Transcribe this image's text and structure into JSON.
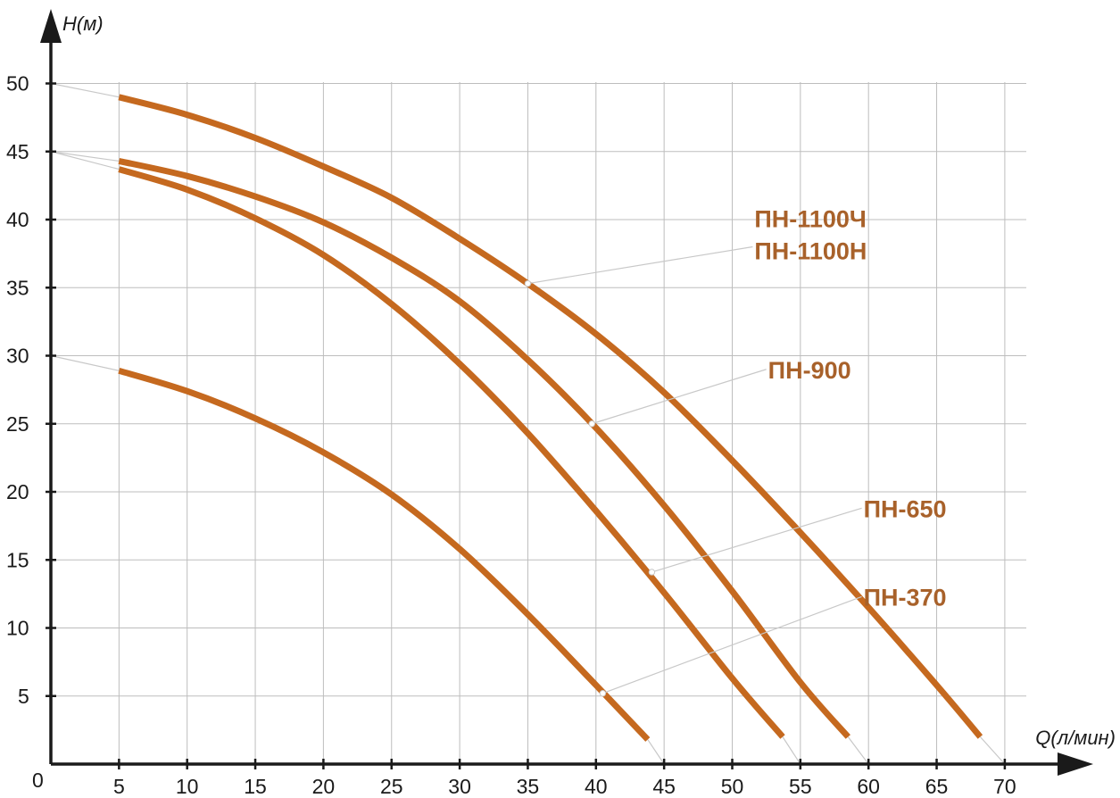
{
  "chart_data": {
    "type": "line",
    "xlabel": "Q(л/мин)",
    "ylabel": "H(м)",
    "origin_label": "0",
    "xlim": [
      0,
      70
    ],
    "ylim": [
      0,
      50
    ],
    "x_ticks": [
      5,
      10,
      15,
      20,
      25,
      30,
      35,
      40,
      45,
      50,
      55,
      60,
      65,
      70
    ],
    "y_ticks": [
      5,
      10,
      15,
      20,
      25,
      30,
      35,
      40,
      45,
      50
    ],
    "grid": true,
    "curve_color": "#c5691f",
    "label_color": "#a8612a",
    "series": [
      {
        "name": "ПН-1100Ч\nПН-1100Н",
        "labels": [
          "ПН-1100Ч",
          "ПН-1100Н"
        ],
        "shutoff_head": 50,
        "end_flow": 70,
        "marker": [
          35,
          35.3
        ],
        "points": [
          [
            5,
            49.0
          ],
          [
            10,
            47.7
          ],
          [
            15,
            46.0
          ],
          [
            20,
            43.9
          ],
          [
            25,
            41.6
          ],
          [
            30,
            38.6
          ],
          [
            35,
            35.3
          ],
          [
            40,
            31.6
          ],
          [
            45,
            27.3
          ],
          [
            50,
            22.3
          ],
          [
            55,
            17.0
          ],
          [
            60,
            11.5
          ],
          [
            65,
            5.8
          ],
          [
            68.2,
            2.0
          ]
        ]
      },
      {
        "name": "ПН-900",
        "labels": [
          "ПН-900"
        ],
        "shutoff_head": 45,
        "end_flow": 60,
        "marker": [
          39.7,
          25
        ],
        "points": [
          [
            5,
            44.3
          ],
          [
            10,
            43.2
          ],
          [
            15,
            41.7
          ],
          [
            20,
            39.8
          ],
          [
            25,
            37.2
          ],
          [
            30,
            34.0
          ],
          [
            35,
            29.7
          ],
          [
            40,
            24.7
          ],
          [
            45,
            19.0
          ],
          [
            50,
            12.7
          ],
          [
            55,
            6.0
          ],
          [
            58.5,
            2.0
          ]
        ]
      },
      {
        "name": "ПН-650",
        "labels": [
          "ПН-650"
        ],
        "shutoff_head": 45,
        "end_flow": 55,
        "marker": [
          44.1,
          14.1
        ],
        "points": [
          [
            5,
            43.7
          ],
          [
            10,
            42.2
          ],
          [
            15,
            40.1
          ],
          [
            20,
            37.4
          ],
          [
            25,
            33.8
          ],
          [
            30,
            29.4
          ],
          [
            35,
            24.3
          ],
          [
            40,
            18.6
          ],
          [
            45,
            12.6
          ],
          [
            50,
            6.3
          ],
          [
            53.7,
            2.0
          ]
        ]
      },
      {
        "name": "ПН-370",
        "labels": [
          "ПН-370"
        ],
        "shutoff_head": 30,
        "end_flow": 45,
        "marker": [
          40.5,
          5.2
        ],
        "points": [
          [
            5,
            28.9
          ],
          [
            10,
            27.4
          ],
          [
            15,
            25.4
          ],
          [
            20,
            22.9
          ],
          [
            25,
            19.8
          ],
          [
            30,
            15.8
          ],
          [
            35,
            11.0
          ],
          [
            40,
            5.8
          ],
          [
            43.8,
            1.8
          ]
        ]
      }
    ],
    "label_anchors": [
      {
        "series": 0,
        "label_flow": 51.5,
        "label_head": 38
      },
      {
        "series": 1,
        "label_flow": 52.5,
        "label_head": 29
      },
      {
        "series": 2,
        "label_flow": 59.5,
        "label_head": 18.8
      },
      {
        "series": 3,
        "label_flow": 59.5,
        "label_head": 12.3
      }
    ]
  }
}
